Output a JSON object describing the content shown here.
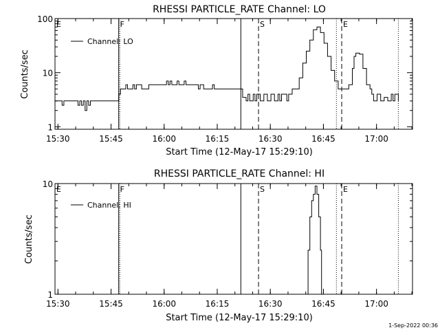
{
  "footer": "1-Sep-2022 00:36",
  "chart_data": [
    {
      "type": "line",
      "title": "RHESSI PARTICLE_RATE Channel: LO",
      "xlabel": "Start Time (12-May-17 15:29:10)",
      "ylabel": "Counts/sec",
      "xscale": "time (minutes since 15:29:10)",
      "yscale": "log",
      "ylim": [
        0.9,
        100
      ],
      "xlim": [
        0,
        101
      ],
      "xticks": [
        "15:30",
        "15:45",
        "16:00",
        "16:15",
        "16:30",
        "16:45",
        "17:00"
      ],
      "yticks": [
        "1",
        "10",
        "100"
      ],
      "legend": {
        "position": "top-left",
        "label": "Channel: LO"
      },
      "markers": [
        {
          "label": "E",
          "t": 0.0,
          "style": "solid"
        },
        {
          "label": "F",
          "t": 18.0,
          "style": "solid"
        },
        {
          "label": "",
          "t": 18.3,
          "style": "dotted"
        },
        {
          "label": "",
          "t": 52.5,
          "style": "solid"
        },
        {
          "label": "S",
          "t": 57.5,
          "style": "dashed"
        },
        {
          "label": "",
          "t": 79.5,
          "style": "dotted"
        },
        {
          "label": "E",
          "t": 81.0,
          "style": "dashed"
        },
        {
          "label": "",
          "t": 97.0,
          "style": "dotted"
        }
      ],
      "series": [
        {
          "name": "Channel: LO",
          "points": [
            [
              0,
              3
            ],
            [
              1.5,
              3
            ],
            [
              2,
              2.5
            ],
            [
              2.5,
              3
            ],
            [
              6,
              3
            ],
            [
              6.5,
              2.5
            ],
            [
              7,
              3
            ],
            [
              7.5,
              2.5
            ],
            [
              8,
              3
            ],
            [
              8.5,
              2
            ],
            [
              9,
              3
            ],
            [
              9.5,
              2.5
            ],
            [
              10,
              3
            ],
            [
              17.5,
              3
            ],
            [
              18,
              4
            ],
            [
              18.5,
              5
            ],
            [
              19.5,
              5
            ],
            [
              20,
              6
            ],
            [
              20.5,
              5
            ],
            [
              21.5,
              5
            ],
            [
              22,
              6
            ],
            [
              22.5,
              5
            ],
            [
              23,
              6
            ],
            [
              24,
              6
            ],
            [
              24.5,
              5
            ],
            [
              26,
              5
            ],
            [
              26.5,
              6
            ],
            [
              31,
              6
            ],
            [
              31.5,
              7
            ],
            [
              32,
              6
            ],
            [
              32.5,
              7
            ],
            [
              33,
              6
            ],
            [
              34,
              6
            ],
            [
              34.5,
              7
            ],
            [
              35,
              6
            ],
            [
              36,
              6
            ],
            [
              36.5,
              7
            ],
            [
              37,
              6
            ],
            [
              40,
              6
            ],
            [
              40.5,
              5
            ],
            [
              41,
              6
            ],
            [
              42,
              5
            ],
            [
              44,
              5
            ],
            [
              44.5,
              6
            ],
            [
              45,
              5
            ],
            [
              52.5,
              5
            ],
            [
              53,
              3.5
            ],
            [
              54,
              3
            ],
            [
              54.5,
              4
            ],
            [
              55,
              3
            ],
            [
              56,
              4
            ],
            [
              56.5,
              3
            ],
            [
              57,
              4
            ],
            [
              58,
              3
            ],
            [
              59,
              4
            ],
            [
              60,
              3
            ],
            [
              61,
              4
            ],
            [
              62,
              3
            ],
            [
              63,
              4
            ],
            [
              63.5,
              3
            ],
            [
              64,
              4
            ],
            [
              65,
              4
            ],
            [
              65.5,
              3
            ],
            [
              66,
              4
            ],
            [
              67,
              5
            ],
            [
              68,
              5
            ],
            [
              69,
              8
            ],
            [
              70,
              15
            ],
            [
              71,
              25
            ],
            [
              72,
              40
            ],
            [
              73,
              62
            ],
            [
              74,
              70
            ],
            [
              75,
              55
            ],
            [
              76,
              35
            ],
            [
              77,
              20
            ],
            [
              78,
              11
            ],
            [
              79,
              7
            ],
            [
              80,
              5
            ],
            [
              81,
              5
            ],
            [
              82,
              5
            ],
            [
              83,
              6
            ],
            [
              84,
              12
            ],
            [
              84.5,
              20
            ],
            [
              85,
              23
            ],
            [
              86,
              22
            ],
            [
              87,
              12
            ],
            [
              88,
              6
            ],
            [
              89,
              5
            ],
            [
              89.5,
              4
            ],
            [
              90,
              3
            ],
            [
              91,
              4
            ],
            [
              92,
              3
            ],
            [
              93,
              3.5
            ],
            [
              94,
              3
            ],
            [
              95,
              4
            ],
            [
              95.5,
              3
            ],
            [
              96,
              4
            ],
            [
              97,
              3
            ]
          ]
        }
      ]
    },
    {
      "type": "line",
      "title": "RHESSI PARTICLE_RATE Channel: HI",
      "xlabel": "Start Time (12-May-17 15:29:10)",
      "ylabel": "Counts/sec",
      "xscale": "time (minutes since 15:29:10)",
      "yscale": "log",
      "ylim": [
        1,
        10
      ],
      "xlim": [
        0,
        101
      ],
      "xticks": [
        "15:30",
        "15:45",
        "16:00",
        "16:15",
        "16:30",
        "16:45",
        "17:00"
      ],
      "yticks": [
        "1",
        "10"
      ],
      "legend": {
        "position": "top-left",
        "label": "Channel: HI"
      },
      "markers": [
        {
          "label": "E",
          "t": 0.0,
          "style": "solid"
        },
        {
          "label": "F",
          "t": 18.0,
          "style": "solid"
        },
        {
          "label": "",
          "t": 18.3,
          "style": "dotted"
        },
        {
          "label": "",
          "t": 52.5,
          "style": "solid"
        },
        {
          "label": "S",
          "t": 57.5,
          "style": "dashed"
        },
        {
          "label": "",
          "t": 79.5,
          "style": "dotted"
        },
        {
          "label": "E",
          "t": 81.0,
          "style": "dashed"
        },
        {
          "label": "",
          "t": 97.0,
          "style": "dotted"
        }
      ],
      "series": [
        {
          "name": "Channel: HI",
          "points": [
            [
              71,
              1.0
            ],
            [
              71.5,
              2.5
            ],
            [
              72,
              5
            ],
            [
              72.5,
              7
            ],
            [
              73,
              8
            ],
            [
              73.5,
              9.5
            ],
            [
              74,
              8
            ],
            [
              74.5,
              5
            ],
            [
              75,
              2.5
            ],
            [
              75.3,
              1.0
            ]
          ]
        }
      ]
    }
  ]
}
